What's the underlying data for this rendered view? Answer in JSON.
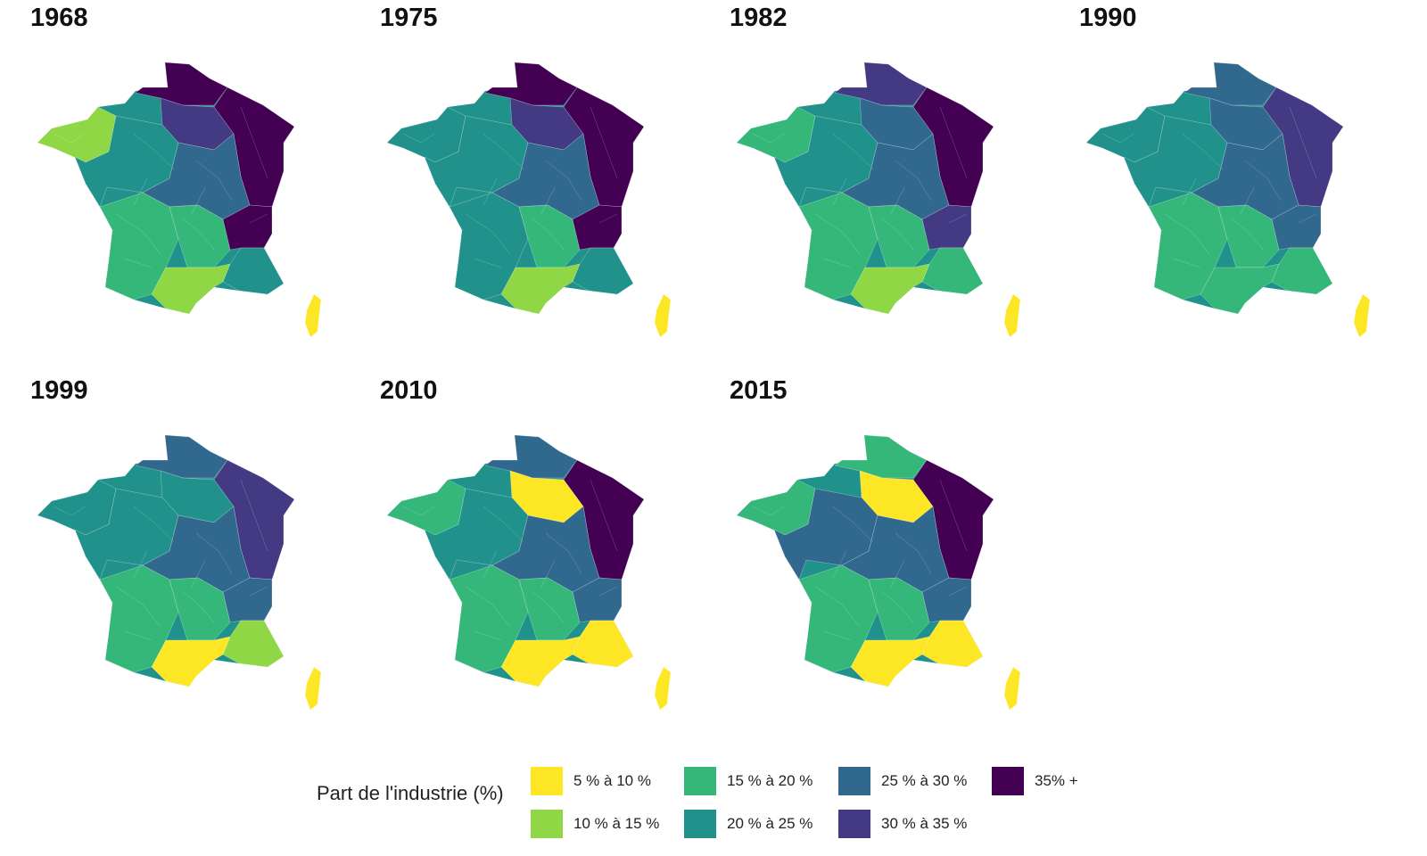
{
  "legend": {
    "title": "Part de l'industrie (%)",
    "classes": [
      {
        "label": "5 % à 10 %",
        "color": "#fde725"
      },
      {
        "label": "10 % à 15 %",
        "color": "#8fd744"
      },
      {
        "label": "15 % à 20 %",
        "color": "#35b779"
      },
      {
        "label": "20 % à 25 %",
        "color": "#21918c"
      },
      {
        "label": "25 % à 30 %",
        "color": "#31688e"
      },
      {
        "label": "30 % à 35 %",
        "color": "#443a83"
      },
      {
        "label": "35% +",
        "color": "#440154"
      }
    ]
  },
  "maps": [
    {
      "year": "1968",
      "regions": {
        "nord": 6,
        "ne": 6,
        "paris": 5,
        "centre": 4,
        "west": 3,
        "brittany": 1,
        "sw": 2,
        "massif": 2,
        "east_c": 6,
        "se": 3,
        "medit": 1,
        "corsica": 0
      }
    },
    {
      "year": "1975",
      "regions": {
        "nord": 6,
        "ne": 6,
        "paris": 5,
        "centre": 4,
        "west": 3,
        "brittany": 3,
        "sw": 3,
        "massif": 2,
        "east_c": 6,
        "se": 3,
        "medit": 1,
        "corsica": 0
      }
    },
    {
      "year": "1982",
      "regions": {
        "nord": 5,
        "ne": 6,
        "paris": 4,
        "centre": 4,
        "west": 3,
        "brittany": 2,
        "sw": 2,
        "massif": 2,
        "east_c": 5,
        "se": 2,
        "medit": 1,
        "corsica": 0
      }
    },
    {
      "year": "1990",
      "regions": {
        "nord": 4,
        "ne": 5,
        "paris": 4,
        "centre": 4,
        "west": 3,
        "brittany": 3,
        "sw": 2,
        "massif": 2,
        "east_c": 4,
        "se": 2,
        "medit": 2,
        "corsica": 0
      }
    },
    {
      "year": "1999",
      "regions": {
        "nord": 4,
        "ne": 5,
        "paris": 3,
        "centre": 4,
        "west": 3,
        "brittany": 3,
        "sw": 2,
        "massif": 2,
        "east_c": 4,
        "se": 1,
        "medit": 0,
        "corsica": 0
      }
    },
    {
      "year": "2010",
      "regions": {
        "nord": 4,
        "ne": 6,
        "paris": 0,
        "centre": 4,
        "west": 3,
        "brittany": 2,
        "sw": 2,
        "massif": 2,
        "east_c": 4,
        "se": 0,
        "medit": 0,
        "corsica": 0
      }
    },
    {
      "year": "2015",
      "regions": {
        "nord": 2,
        "ne": 6,
        "paris": 0,
        "centre": 4,
        "west": 4,
        "brittany": 2,
        "sw": 2,
        "massif": 2,
        "east_c": 4,
        "se": 0,
        "medit": 0,
        "corsica": 0
      }
    }
  ]
}
